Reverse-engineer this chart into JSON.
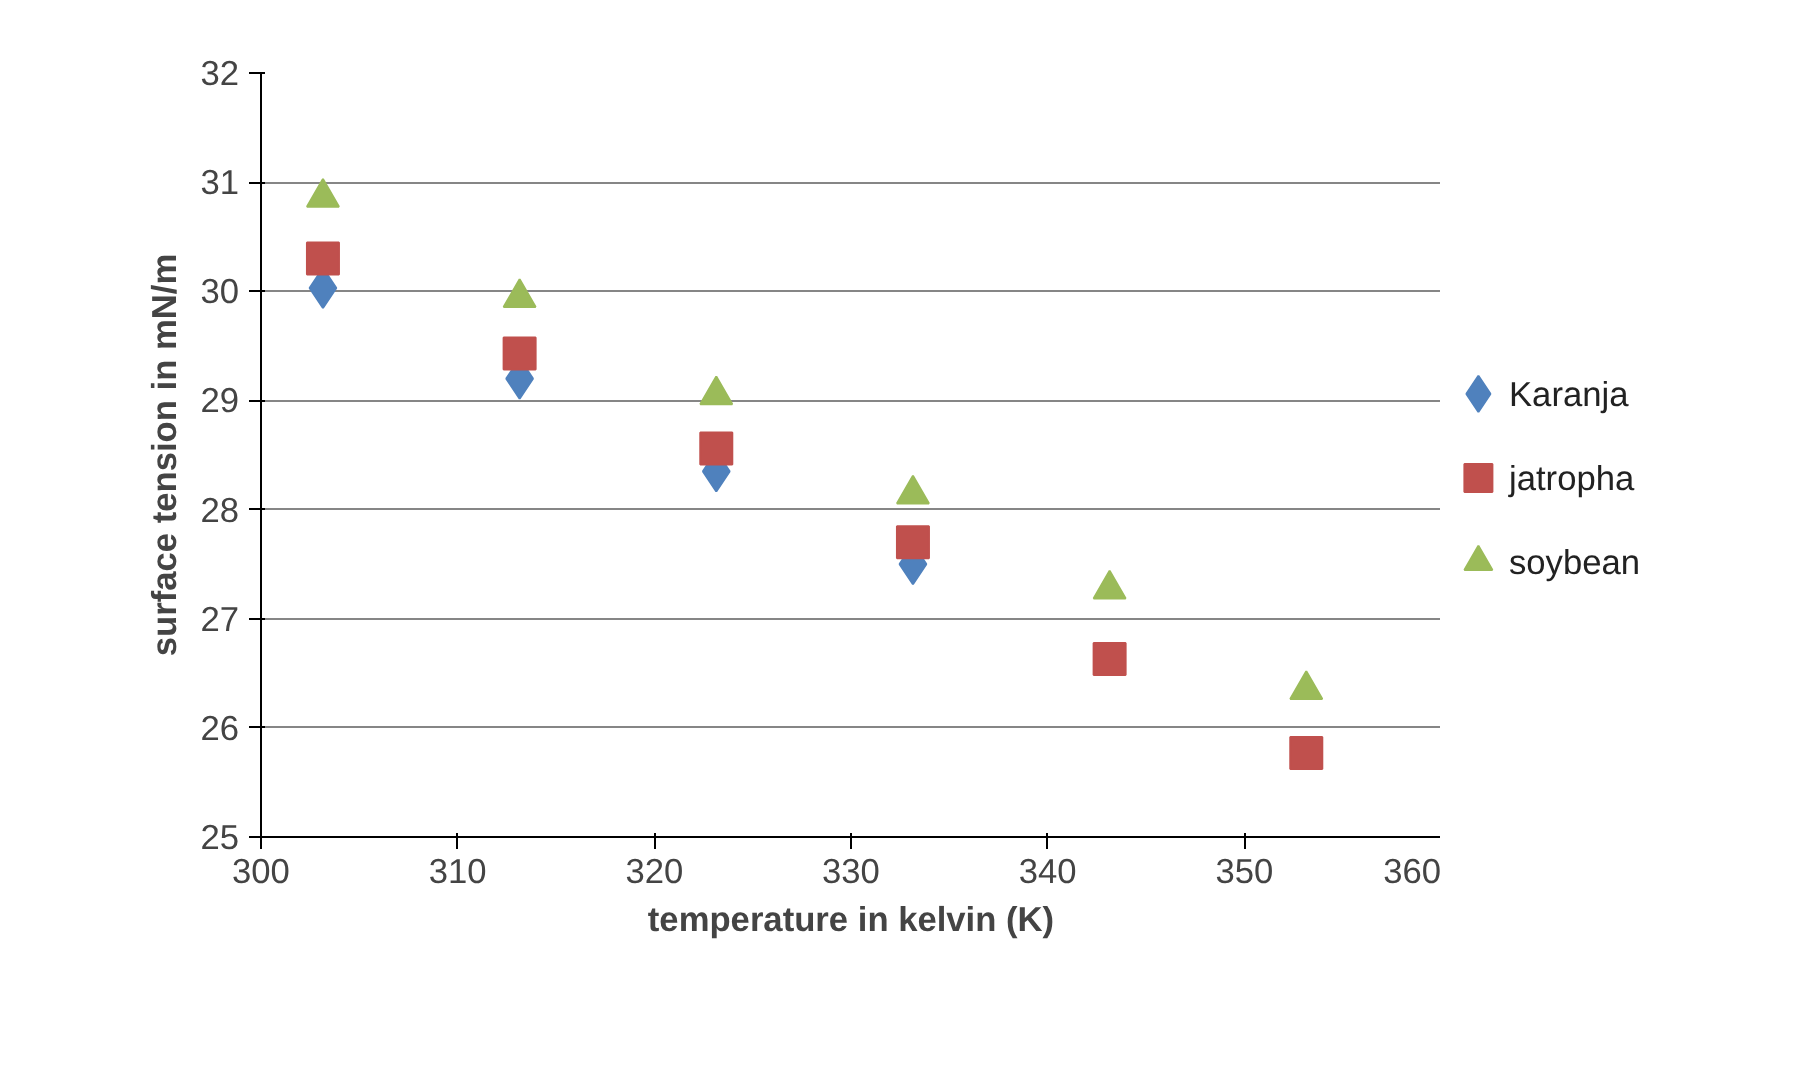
{
  "chart_data": {
    "type": "scatter",
    "xlabel": "temperature in kelvin (K)",
    "ylabel": "surface tension in mN/m",
    "x": [
      303.15,
      313.15,
      323.15,
      333.15,
      343.15,
      353.15
    ],
    "series": [
      {
        "name": "Karanja",
        "color": "#4f81bd",
        "marker": "diamond",
        "values": [
          30.03,
          29.2,
          28.35,
          27.5,
          null,
          null
        ]
      },
      {
        "name": "jatropha",
        "color": "#c0504d",
        "marker": "square",
        "values": [
          30.3,
          29.43,
          28.56,
          27.7,
          26.63,
          25.77
        ]
      },
      {
        "name": "soybean",
        "color": "#9bbb59",
        "marker": "triangle",
        "values": [
          30.86,
          29.94,
          29.05,
          28.14,
          27.27,
          26.35
        ]
      }
    ],
    "xlim": [
      300,
      360
    ],
    "xticks": [
      300,
      310,
      320,
      330,
      340,
      350,
      360
    ],
    "ylim": [
      25,
      32
    ],
    "yticks": [
      25,
      26,
      27,
      28,
      29,
      30,
      31,
      32
    ],
    "grid": "y",
    "legend": "right"
  }
}
